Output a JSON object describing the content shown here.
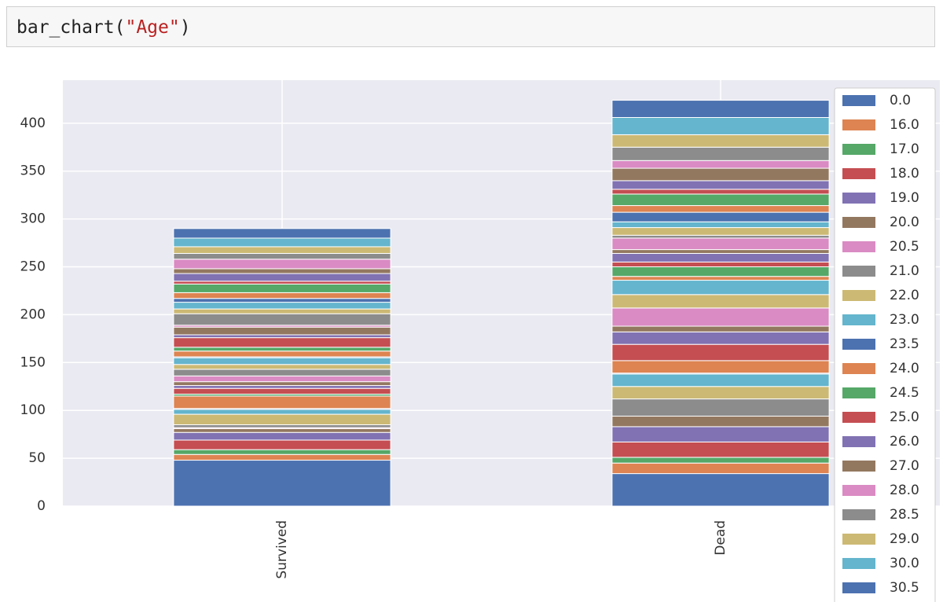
{
  "code": {
    "tokens": [
      "bar_chart(",
      "\"Age\"",
      ")"
    ]
  },
  "chart_data": {
    "type": "bar",
    "stacked": true,
    "categories": [
      "Survived",
      "Dead"
    ],
    "ylim": [
      0,
      445
    ],
    "yticks": [
      0,
      50,
      100,
      150,
      200,
      250,
      300,
      350,
      400
    ],
    "grid": true,
    "legend": "upper right",
    "series": [
      {
        "name": "0.0",
        "color": "#4c72b0",
        "values": [
          48,
          34
        ]
      },
      {
        "name": "16.0",
        "color": "#dd8452",
        "values": [
          6,
          11
        ]
      },
      {
        "name": "17.0",
        "color": "#55a868",
        "values": [
          5,
          6
        ]
      },
      {
        "name": "18.0",
        "color": "#c44e52",
        "values": [
          10,
          16
        ]
      },
      {
        "name": "19.0",
        "color": "#8172b3",
        "values": [
          8,
          16
        ]
      },
      {
        "name": "20.0",
        "color": "#937860",
        "values": [
          4,
          11
        ]
      },
      {
        "name": "20.5",
        "color": "#da8bc3",
        "values": [
          1,
          0
        ]
      },
      {
        "name": "21.0",
        "color": "#8c8c8c",
        "values": [
          3,
          18
        ]
      },
      {
        "name": "22.0",
        "color": "#ccb974",
        "values": [
          11,
          13
        ]
      },
      {
        "name": "23.0",
        "color": "#64b5cd",
        "values": [
          5,
          13
        ]
      },
      {
        "name": "23.5",
        "color": "#4c72b0",
        "values": [
          1,
          1
        ]
      },
      {
        "name": "24.0",
        "color": "#dd8452",
        "values": [
          13,
          13
        ]
      },
      {
        "name": "24.5",
        "color": "#55a868",
        "values": [
          2,
          0
        ]
      },
      {
        "name": "25.0",
        "color": "#c44e52",
        "values": [
          6,
          17
        ]
      },
      {
        "name": "26.0",
        "color": "#8172b3",
        "values": [
          3,
          13
        ]
      },
      {
        "name": "27.0",
        "color": "#937860",
        "values": [
          4,
          6
        ]
      },
      {
        "name": "28.0",
        "color": "#da8bc3",
        "values": [
          6,
          19
        ]
      },
      {
        "name": "28.5",
        "color": "#8c8c8c",
        "values": [
          7,
          0
        ]
      },
      {
        "name": "29.0",
        "color": "#ccb974",
        "values": [
          5,
          14
        ]
      },
      {
        "name": "30.0",
        "color": "#64b5cd",
        "values": [
          7,
          15
        ]
      },
      {
        "name": "30.5",
        "color": "#4c72b0",
        "values": [
          1,
          0
        ]
      },
      {
        "name": null,
        "color": "#dd8452",
        "values": [
          6,
          4
        ]
      },
      {
        "name": null,
        "color": "#55a868",
        "values": [
          4,
          10
        ]
      },
      {
        "name": null,
        "color": "#c44e52",
        "values": [
          10,
          5
        ]
      },
      {
        "name": null,
        "color": "#8172b3",
        "values": [
          3,
          9
        ]
      },
      {
        "name": null,
        "color": "#937860",
        "values": [
          8,
          4
        ]
      },
      {
        "name": null,
        "color": "#da8bc3",
        "values": [
          2,
          12
        ]
      },
      {
        "name": null,
        "color": "#8c8c8c",
        "values": [
          12,
          3
        ]
      },
      {
        "name": null,
        "color": "#ccb974",
        "values": [
          5,
          8
        ]
      },
      {
        "name": null,
        "color": "#64b5cd",
        "values": [
          7,
          6
        ]
      },
      {
        "name": null,
        "color": "#4c72b0",
        "values": [
          4,
          10
        ]
      },
      {
        "name": null,
        "color": "#dd8452",
        "values": [
          6,
          7
        ]
      },
      {
        "name": null,
        "color": "#55a868",
        "values": [
          9,
          12
        ]
      },
      {
        "name": null,
        "color": "#c44e52",
        "values": [
          3,
          5
        ]
      },
      {
        "name": null,
        "color": "#8172b3",
        "values": [
          8,
          9
        ]
      },
      {
        "name": null,
        "color": "#937860",
        "values": [
          5,
          13
        ]
      },
      {
        "name": null,
        "color": "#da8bc3",
        "values": [
          10,
          8
        ]
      },
      {
        "name": null,
        "color": "#8c8c8c",
        "values": [
          6,
          14
        ]
      },
      {
        "name": null,
        "color": "#ccb974",
        "values": [
          7,
          13
        ]
      },
      {
        "name": null,
        "color": "#64b5cd",
        "values": [
          9,
          18
        ]
      },
      {
        "name": null,
        "color": "#4c72b0",
        "values": [
          10,
          18
        ]
      }
    ]
  }
}
